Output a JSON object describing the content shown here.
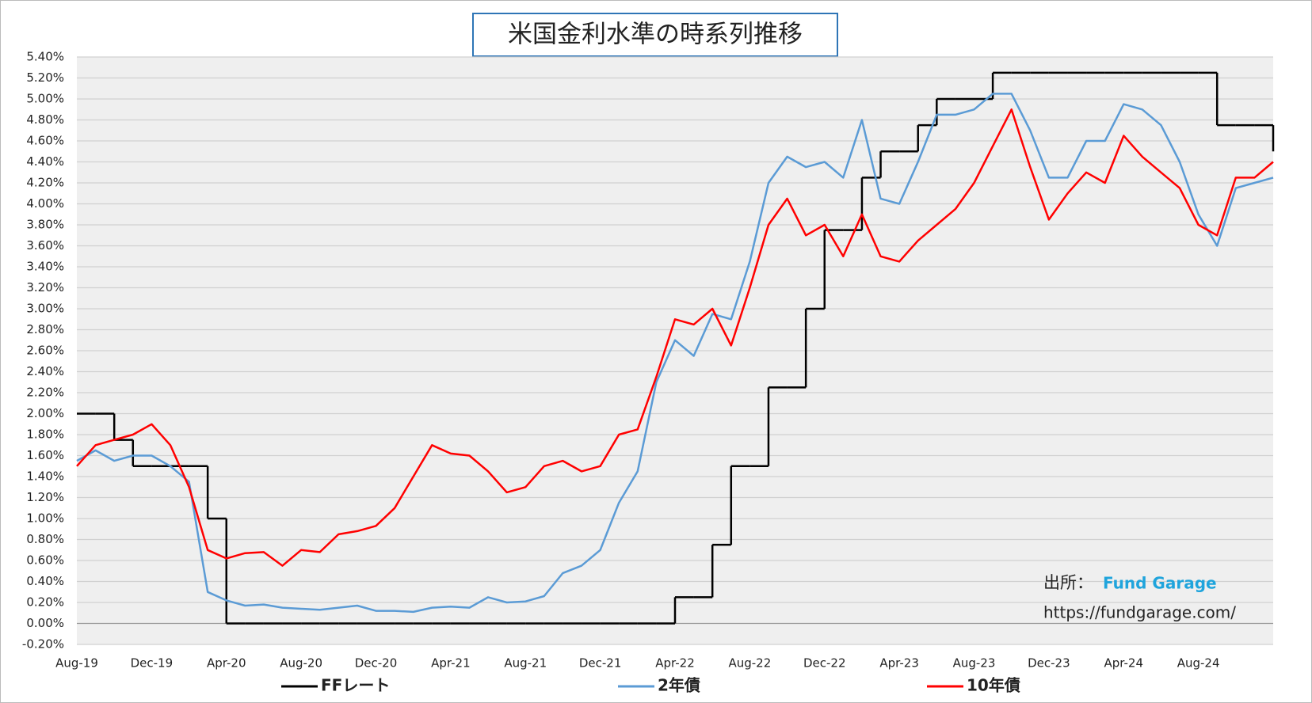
{
  "chart_data": {
    "type": "line",
    "title": "米国金利水準の時系列推移",
    "categories": [
      "Aug-19",
      null,
      null,
      null,
      "Dec-19",
      null,
      null,
      null,
      "Apr-20",
      null,
      null,
      null,
      "Aug-20",
      null,
      null,
      null,
      "Dec-20",
      null,
      null,
      null,
      "Apr-21",
      null,
      null,
      null,
      "Aug-21",
      null,
      null,
      null,
      "Dec-21",
      null,
      null,
      null,
      "Apr-22",
      null,
      null,
      null,
      "Aug-22",
      null,
      null,
      null,
      "Dec-22",
      null,
      null,
      null,
      "Apr-23",
      null,
      null,
      null,
      "Aug-23",
      null,
      null,
      null,
      "Dec-23",
      null,
      null,
      null,
      "Apr-24",
      null,
      null,
      null,
      "Aug-24",
      null,
      null,
      null,
      null
    ],
    "series": [
      {
        "name": "FFレート",
        "color": "#000000",
        "step": true,
        "values": [
          2.0,
          2.0,
          1.75,
          1.5,
          1.5,
          1.5,
          1.5,
          1.0,
          0,
          0,
          0,
          0,
          0,
          0,
          0,
          0,
          0,
          0,
          0,
          0,
          0,
          0,
          0,
          0,
          0,
          0,
          0,
          0,
          0,
          0,
          0,
          0,
          0.25,
          0.25,
          0.75,
          1.5,
          1.5,
          2.25,
          2.25,
          3.0,
          3.75,
          3.75,
          4.25,
          4.5,
          4.5,
          4.75,
          5.0,
          5.0,
          5.0,
          5.25,
          5.25,
          5.25,
          5.25,
          5.25,
          5.25,
          5.25,
          5.25,
          5.25,
          5.25,
          5.25,
          5.25,
          4.75,
          4.75,
          4.75,
          4.5
        ]
      },
      {
        "name": "2年債",
        "color": "#5b9bd5",
        "values": [
          1.55,
          1.65,
          1.55,
          1.6,
          1.6,
          1.5,
          1.35,
          0.3,
          0.22,
          0.17,
          0.18,
          0.15,
          0.14,
          0.13,
          0.15,
          0.17,
          0.12,
          0.12,
          0.11,
          0.15,
          0.16,
          0.15,
          0.25,
          0.2,
          0.21,
          0.26,
          0.48,
          0.55,
          0.7,
          1.15,
          1.45,
          2.3,
          2.7,
          2.55,
          2.95,
          2.9,
          3.45,
          4.2,
          4.45,
          4.35,
          4.4,
          4.25,
          4.8,
          4.05,
          4.0,
          4.4,
          4.85,
          4.85,
          4.9,
          5.05,
          5.05,
          4.7,
          4.25,
          4.25,
          4.6,
          4.6,
          4.95,
          4.9,
          4.75,
          4.4,
          3.9,
          3.6,
          4.15,
          4.2,
          4.25
        ]
      },
      {
        "name": "10年債",
        "color": "#ff0000",
        "values": [
          1.5,
          1.7,
          1.75,
          1.8,
          1.9,
          1.7,
          1.3,
          0.7,
          0.62,
          0.67,
          0.68,
          0.55,
          0.7,
          0.68,
          0.85,
          0.88,
          0.93,
          1.1,
          1.4,
          1.7,
          1.62,
          1.6,
          1.45,
          1.25,
          1.3,
          1.5,
          1.55,
          1.45,
          1.5,
          1.8,
          1.85,
          2.35,
          2.9,
          2.85,
          3.0,
          2.65,
          3.2,
          3.8,
          4.05,
          3.7,
          3.8,
          3.5,
          3.9,
          3.5,
          3.45,
          3.65,
          3.8,
          3.95,
          4.2,
          4.55,
          4.9,
          4.35,
          3.85,
          4.1,
          4.3,
          4.2,
          4.65,
          4.45,
          4.3,
          4.15,
          3.8,
          3.7,
          4.25,
          4.25,
          4.4
        ]
      }
    ],
    "ylim": [
      -0.2,
      5.4
    ],
    "yticks": [
      {
        "value": -0.2,
        "label": "-0.20%"
      },
      {
        "value": 0,
        "label": "0.00%"
      },
      {
        "value": 0.2,
        "label": "0.20%"
      },
      {
        "value": 0.4,
        "label": "0.40%"
      },
      {
        "value": 0.6,
        "label": "0.60%"
      },
      {
        "value": 0.8,
        "label": "0.80%"
      },
      {
        "value": 1.0,
        "label": "1.00%"
      },
      {
        "value": 1.2,
        "label": "1.20%"
      },
      {
        "value": 1.4,
        "label": "1.40%"
      },
      {
        "value": 1.6,
        "label": "1.60%"
      },
      {
        "value": 1.8,
        "label": "1.80%"
      },
      {
        "value": 2.0,
        "label": "2.00%"
      },
      {
        "value": 2.2,
        "label": "2.20%"
      },
      {
        "value": 2.4,
        "label": "2.40%"
      },
      {
        "value": 2.6,
        "label": "2.60%"
      },
      {
        "value": 2.8,
        "label": "2.80%"
      },
      {
        "value": 3.0,
        "label": "3.00%"
      },
      {
        "value": 3.2,
        "label": "3.20%"
      },
      {
        "value": 3.4,
        "label": "3.40%"
      },
      {
        "value": 3.6,
        "label": "3.60%"
      },
      {
        "value": 3.8,
        "label": "3.80%"
      },
      {
        "value": 4.0,
        "label": "4.00%"
      },
      {
        "value": 4.2,
        "label": "4.20%"
      },
      {
        "value": 4.4,
        "label": "4.40%"
      },
      {
        "value": 4.6,
        "label": "4.60%"
      },
      {
        "value": 4.8,
        "label": "4.80%"
      },
      {
        "value": 5.0,
        "label": "5.00%"
      },
      {
        "value": 5.2,
        "label": "5.20%"
      },
      {
        "value": 5.4,
        "label": "5.40%"
      }
    ],
    "grid": true,
    "annotations": {
      "source_label": "出所：",
      "source_name": "Fund Garage",
      "url": "https://fundgarage.com/"
    }
  }
}
